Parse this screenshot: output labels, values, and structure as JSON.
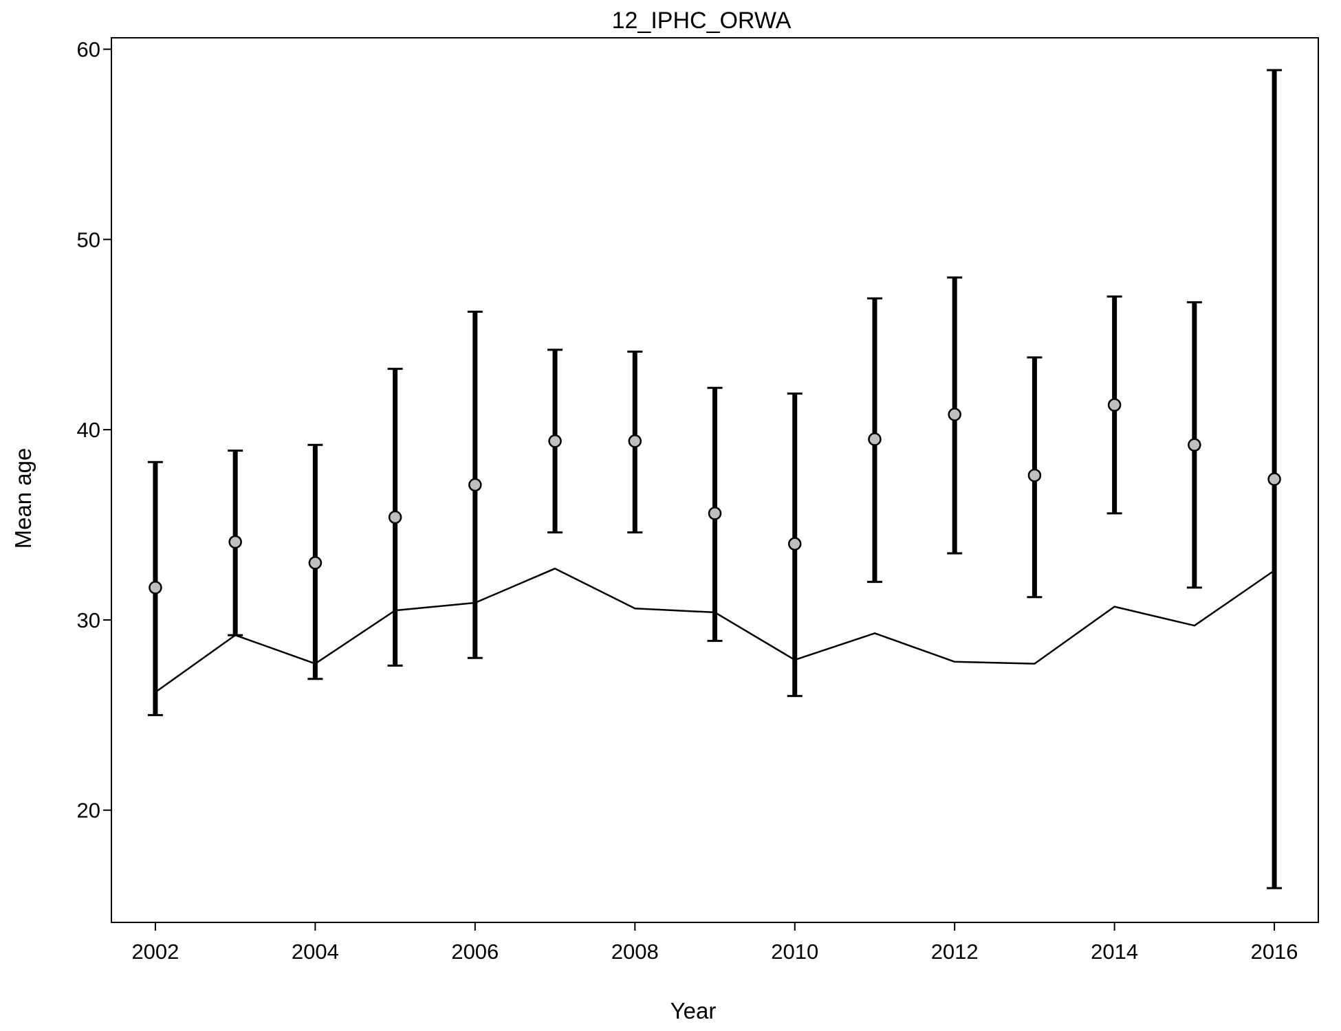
{
  "chart_data": {
    "type": "scatter",
    "title": "12_IPHC_ORWA",
    "xlabel": "Year",
    "ylabel": "Mean age",
    "xlim": [
      2001.45,
      2016.55
    ],
    "ylim": [
      14.1,
      60.6
    ],
    "x_ticks": [
      2002,
      2004,
      2006,
      2008,
      2010,
      2012,
      2014,
      2016
    ],
    "y_ticks": [
      20,
      30,
      40,
      50,
      60
    ],
    "grid": false,
    "legend": "none",
    "series": [
      {
        "kind": "points-with-error-bars",
        "x": [
          2002,
          2003,
          2004,
          2005,
          2006,
          2007,
          2008,
          2009,
          2010,
          2011,
          2012,
          2013,
          2014,
          2015,
          2016
        ],
        "values": [
          31.7,
          34.1,
          33.0,
          35.4,
          37.1,
          39.4,
          39.4,
          35.6,
          34.0,
          39.5,
          40.8,
          37.6,
          41.3,
          39.2,
          37.4
        ],
        "lower": [
          25.0,
          29.2,
          26.9,
          27.6,
          28.0,
          34.6,
          34.6,
          28.9,
          26.0,
          32.0,
          33.5,
          31.2,
          35.6,
          31.7,
          15.9
        ],
        "upper": [
          38.3,
          38.9,
          39.2,
          43.2,
          46.2,
          44.2,
          44.1,
          42.2,
          41.9,
          46.9,
          48.0,
          43.8,
          47.0,
          46.7,
          58.9
        ]
      },
      {
        "kind": "line",
        "x": [
          2002,
          2003,
          2004,
          2005,
          2006,
          2007,
          2008,
          2009,
          2010,
          2011,
          2012,
          2013,
          2014,
          2015,
          2016
        ],
        "values": [
          26.2,
          29.2,
          27.7,
          30.5,
          30.9,
          32.7,
          30.6,
          30.4,
          27.9,
          29.3,
          27.8,
          27.7,
          30.7,
          29.7,
          32.6
        ]
      }
    ],
    "colors": {
      "bars": "#000000",
      "line": "#000000",
      "point_fill": "#bfbfbf",
      "point_edge": "#000000"
    }
  }
}
